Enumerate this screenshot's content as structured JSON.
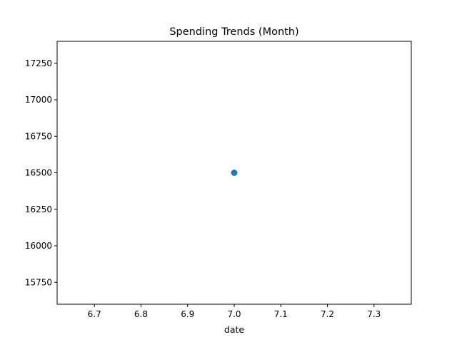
{
  "chart_data": {
    "type": "scatter",
    "title": "Spending Trends (Month)",
    "xlabel": "date",
    "ylabel": "",
    "xlim": [
      6.62,
      7.38
    ],
    "ylim": [
      15600,
      17400
    ],
    "x_ticks": [
      6.7,
      6.8,
      6.9,
      7.0,
      7.1,
      7.2,
      7.3
    ],
    "x_tick_labels": [
      "6.7",
      "6.8",
      "6.9",
      "7.0",
      "7.1",
      "7.2",
      "7.3"
    ],
    "y_ticks": [
      15750,
      16000,
      16250,
      16500,
      16750,
      17000,
      17250
    ],
    "y_tick_labels": [
      "15750",
      "16000",
      "16250",
      "16500",
      "16750",
      "17000",
      "17250"
    ],
    "grid": false,
    "series": [
      {
        "color": "#1f77b4",
        "points": [
          {
            "x": 7.0,
            "y": 16500
          }
        ]
      }
    ]
  }
}
